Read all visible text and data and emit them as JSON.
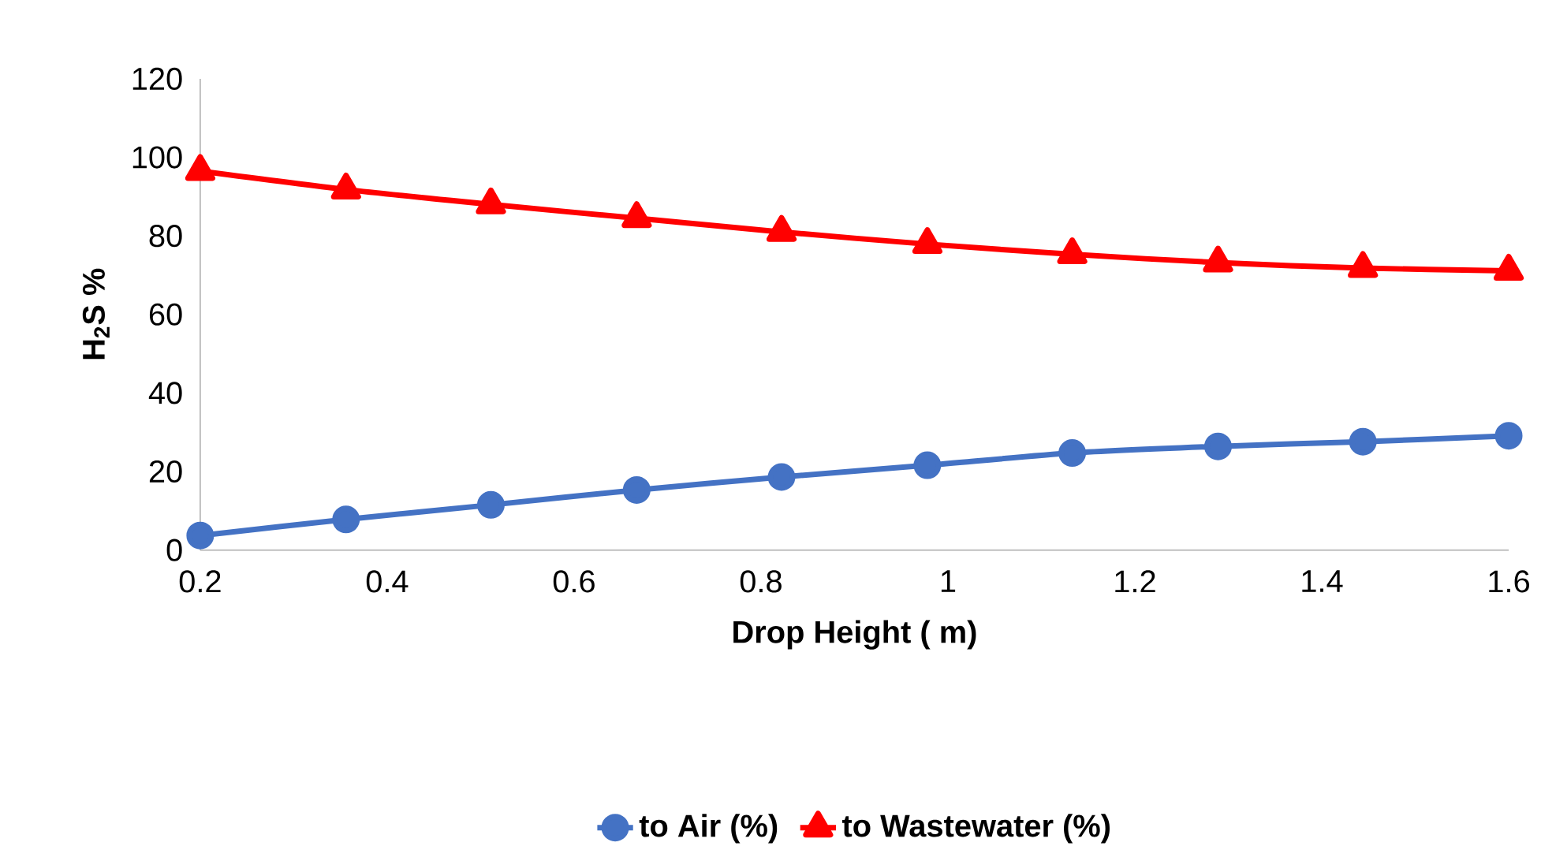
{
  "chart_data": {
    "type": "line",
    "xlabel": "Drop Height ( m)",
    "ylabel": "H$_{2}$S %",
    "x": [
      0.2,
      0.356,
      0.511,
      0.667,
      0.822,
      0.978,
      1.133,
      1.289,
      1.444,
      1.6
    ],
    "series": [
      {
        "name": "to Air (%)",
        "color": "#4472c4",
        "marker": "circle",
        "values": [
          3.7,
          7.8,
          11.5,
          15.3,
          18.6,
          21.6,
          24.7,
          26.4,
          27.6,
          29.1
        ]
      },
      {
        "name": "to Wastewater (%)",
        "color": "#ff0000",
        "marker": "triangle",
        "values": [
          96.5,
          91.8,
          88,
          84.5,
          81,
          77.9,
          75.3,
          73.2,
          71.8,
          71.1
        ]
      }
    ],
    "xlim": [
      0.2,
      1.6
    ],
    "xticks": [
      0.2,
      0.4,
      0.6,
      0.8,
      1,
      1.2,
      1.4,
      1.6
    ],
    "ylim": [
      0,
      120
    ],
    "yticks": [
      0,
      20,
      40,
      60,
      80,
      100,
      120
    ],
    "legend": "bottom"
  }
}
